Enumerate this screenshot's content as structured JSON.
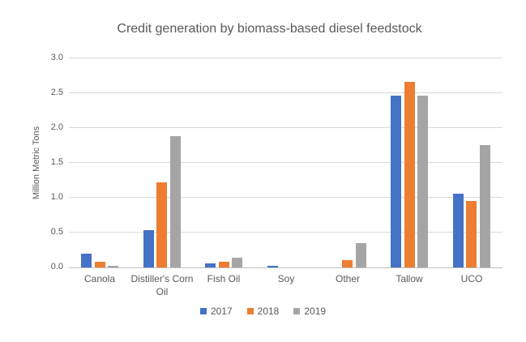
{
  "chart_data": {
    "type": "bar",
    "title": "Credit generation by biomass-based diesel feedstock",
    "xlabel": "",
    "ylabel": "Million Metric Tons",
    "ylim": [
      0,
      3.0
    ],
    "ytick_labels": [
      "0.0",
      "0.5",
      "1.0",
      "1.5",
      "2.0",
      "2.5",
      "3.0"
    ],
    "grid": true,
    "legend_position": "bottom",
    "categories": [
      "Canola",
      "Distiller's Corn Oil",
      "Fish Oil",
      "Soy",
      "Other",
      "Tallow",
      "UCO"
    ],
    "series": [
      {
        "name": "2017",
        "color": "#4472C4",
        "values": [
          0.2,
          0.54,
          0.06,
          0.02,
          0.0,
          2.46,
          1.06
        ]
      },
      {
        "name": "2018",
        "color": "#ED7D31",
        "values": [
          0.08,
          1.22,
          0.08,
          0.0,
          0.11,
          2.66,
          0.95
        ]
      },
      {
        "name": "2019",
        "color": "#A5A5A5",
        "values": [
          0.02,
          1.88,
          0.14,
          0.0,
          0.35,
          2.46,
          1.76
        ]
      }
    ]
  },
  "colors": {
    "text": "#595959",
    "gridline": "#d9d9d9",
    "axis_line": "#bfbfbf",
    "background": "#ffffff"
  }
}
